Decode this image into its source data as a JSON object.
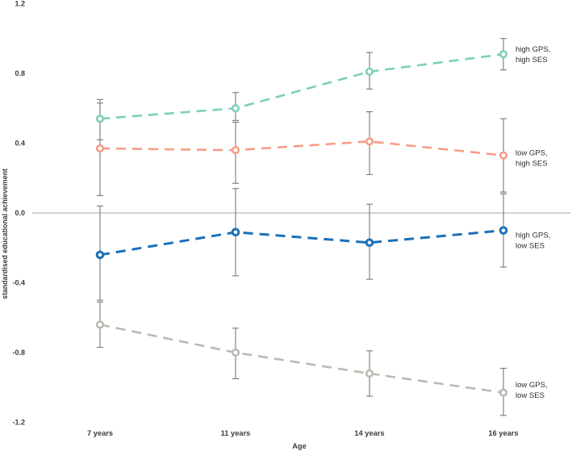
{
  "figure": {
    "background": "#ffffff",
    "text_color": "#3c3c3c",
    "series_label_color": "#2f2f2f",
    "zero_line_color": "#c4c4c4",
    "error_bar_color": "#787878"
  },
  "chart_data": {
    "type": "line",
    "title": "",
    "xlabel": "Age",
    "ylabel": "standardised educational achievement",
    "x_categories": [
      "7 years",
      "11 years",
      "14 years",
      "16 years"
    ],
    "y_tick_labels": [
      "1.2",
      "0.8",
      "0.4",
      "0.0",
      "-0.4",
      "-0.8",
      "-1.2"
    ],
    "y_ticks": [
      1.2,
      0.8,
      0.4,
      0.0,
      -0.4,
      -0.8,
      -1.2
    ],
    "ylim": [
      -1.2,
      1.2
    ],
    "grid": false,
    "line_style": "dashed",
    "marker": "open-circle",
    "error_bars": true,
    "legend_position": "right-of-last-point",
    "series": [
      {
        "name": "high GPS, high SES",
        "label_lines": [
          "high GPS,",
          "high SES"
        ],
        "color": "#7dcfba",
        "values": [
          0.54,
          0.6,
          0.81,
          0.91
        ],
        "ci_low": [
          0.42,
          0.53,
          0.71,
          0.82
        ],
        "ci_high": [
          0.65,
          0.69,
          0.92,
          1.0
        ],
        "label_dy": -3
      },
      {
        "name": "low GPS, high SES",
        "label_lines": [
          "low GPS,",
          "high SES"
        ],
        "color": "#f79c8a",
        "values": [
          0.37,
          0.36,
          0.41,
          0.33
        ],
        "ci_low": [
          0.1,
          0.17,
          0.22,
          0.12
        ],
        "ci_high": [
          0.63,
          0.52,
          0.58,
          0.54
        ],
        "label_dy": 0
      },
      {
        "name": "high GPS, low SES",
        "label_lines": [
          "high GPS,",
          "low SES"
        ],
        "color": "#1d70b6",
        "values": [
          -0.24,
          -0.11,
          -0.17,
          -0.1
        ],
        "ci_low": [
          -0.5,
          -0.36,
          -0.38,
          -0.31
        ],
        "ci_high": [
          0.04,
          0.14,
          0.05,
          0.11
        ],
        "label_dy": 9
      },
      {
        "name": "low GPS, low SES",
        "label_lines": [
          "low GPS,",
          "low SES"
        ],
        "color": "#b7bcb0",
        "values": [
          -0.64,
          -0.8,
          -0.92,
          -1.03
        ],
        "ci_low": [
          -0.77,
          -0.95,
          -1.05,
          -1.16
        ],
        "ci_high": [
          -0.51,
          -0.66,
          -0.79,
          -0.89
        ],
        "label_dy": -7
      }
    ]
  }
}
